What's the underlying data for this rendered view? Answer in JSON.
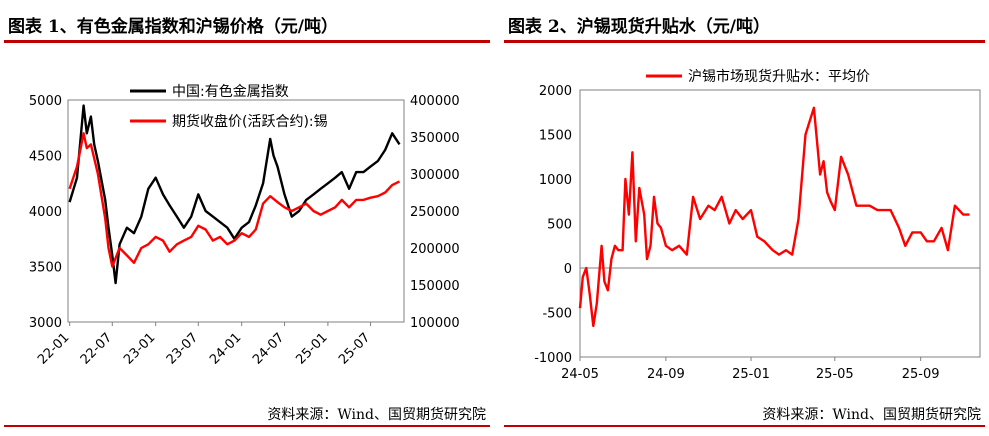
{
  "charts": {
    "left": {
      "title": "图表 1、有色金属指数和沪锡价格（元/吨）",
      "source": "资料来源：Wind、国贸期货研究院"
    },
    "right": {
      "title": "图表 2、沪锡现货升贴水（元/吨）",
      "source": "资料来源：Wind、国贸期货研究院"
    }
  },
  "colors": {
    "accent": "#c00000",
    "series_black": "#000000",
    "series_red": "#ff0000",
    "axis": "#808080"
  },
  "chart_data": [
    {
      "type": "line",
      "title": "图表 1、有色金属指数和沪锡价格（元/吨）",
      "x_ticks": [
        "22-01",
        "22-07",
        "23-01",
        "23-07",
        "24-01",
        "24-07",
        "25-01",
        "25-07"
      ],
      "y_left": {
        "range": [
          3000,
          5000
        ],
        "ticks": [
          "3000",
          "3500",
          "4000",
          "4500",
          "5000"
        ]
      },
      "y_right": {
        "range": [
          100000,
          400000
        ],
        "ticks": [
          "100000",
          "150000",
          "200000",
          "250000",
          "300000",
          "350000",
          "400000"
        ]
      },
      "legend_position": "top-center",
      "series": [
        {
          "name": "中国:有色金属指数",
          "axis": "left",
          "color": "#000000",
          "x": [
            "2022-01",
            "2022-02",
            "2022-03",
            "2022-03-15",
            "2022-04",
            "2022-04-15",
            "2022-05",
            "2022-06",
            "2022-06-15",
            "2022-07",
            "2022-07-15",
            "2022-08",
            "2022-09",
            "2022-10",
            "2022-11",
            "2022-12",
            "2023-01",
            "2023-02",
            "2023-03",
            "2023-04",
            "2023-05",
            "2023-06",
            "2023-07",
            "2023-08",
            "2023-09",
            "2023-10",
            "2023-11",
            "2023-12",
            "2024-01",
            "2024-02",
            "2024-03",
            "2024-04",
            "2024-05",
            "2024-05-15",
            "2024-06",
            "2024-07",
            "2024-08",
            "2024-09",
            "2024-10",
            "2024-11",
            "2024-12",
            "2025-01",
            "2025-02",
            "2025-03",
            "2025-04",
            "2025-05",
            "2025-06",
            "2025-07",
            "2025-08",
            "2025-09",
            "2025-10",
            "2025-11"
          ],
          "y": [
            4080,
            4300,
            4950,
            4700,
            4850,
            4600,
            4450,
            4100,
            3850,
            3600,
            3350,
            3700,
            3850,
            3800,
            3950,
            4200,
            4300,
            4150,
            4050,
            3950,
            3850,
            3950,
            4150,
            4000,
            3950,
            3900,
            3850,
            3750,
            3850,
            3900,
            4050,
            4250,
            4650,
            4500,
            4400,
            4150,
            3950,
            4000,
            4100,
            4150,
            4200,
            4250,
            4300,
            4350,
            4200,
            4350,
            4350,
            4400,
            4450,
            4550,
            4700,
            4600
          ]
        },
        {
          "name": "期货收盘价(活跃合约):锡",
          "axis": "right",
          "color": "#ff0000",
          "x": [
            "2022-01",
            "2022-02",
            "2022-03",
            "2022-03-15",
            "2022-04",
            "2022-05",
            "2022-06",
            "2022-06-15",
            "2022-07",
            "2022-08",
            "2022-09",
            "2022-10",
            "2022-11",
            "2022-12",
            "2023-01",
            "2023-02",
            "2023-03",
            "2023-04",
            "2023-05",
            "2023-06",
            "2023-07",
            "2023-08",
            "2023-09",
            "2023-10",
            "2023-11",
            "2023-12",
            "2024-01",
            "2024-02",
            "2024-03",
            "2024-04",
            "2024-05",
            "2024-06",
            "2024-07",
            "2024-08",
            "2024-09",
            "2024-10",
            "2024-11",
            "2024-12",
            "2025-01",
            "2025-02",
            "2025-03",
            "2025-04",
            "2025-05",
            "2025-06",
            "2025-07",
            "2025-08",
            "2025-09",
            "2025-10",
            "2025-11"
          ],
          "y": [
            280000,
            310000,
            355000,
            335000,
            340000,
            300000,
            240000,
            200000,
            175000,
            200000,
            190000,
            180000,
            200000,
            205000,
            215000,
            210000,
            195000,
            205000,
            210000,
            215000,
            230000,
            225000,
            210000,
            215000,
            205000,
            210000,
            220000,
            215000,
            225000,
            260000,
            270000,
            262000,
            255000,
            250000,
            255000,
            260000,
            250000,
            245000,
            250000,
            255000,
            265000,
            255000,
            265000,
            265000,
            268000,
            270000,
            275000,
            285000,
            290000
          ]
        }
      ]
    },
    {
      "type": "line",
      "title": "图表 2、沪锡现货升贴水（元/吨）",
      "x_ticks": [
        "24-05",
        "24-09",
        "25-01",
        "25-05",
        "25-09"
      ],
      "y": {
        "range": [
          -1000,
          2000
        ],
        "ticks": [
          "-1000",
          "-500",
          "0",
          "500",
          "1000",
          "1500",
          "2000"
        ]
      },
      "legend_position": "top-center",
      "series": [
        {
          "name": "沪锡市场现货升贴水：平均价",
          "color": "#ff0000",
          "x": [
            "2024-05-01",
            "2024-05-05",
            "2024-05-10",
            "2024-05-15",
            "2024-05-20",
            "2024-05-25",
            "2024-06-01",
            "2024-06-05",
            "2024-06-10",
            "2024-06-15",
            "2024-06-20",
            "2024-06-25",
            "2024-07-01",
            "2024-07-05",
            "2024-07-10",
            "2024-07-15",
            "2024-07-20",
            "2024-07-25",
            "2024-08-01",
            "2024-08-05",
            "2024-08-10",
            "2024-08-15",
            "2024-08-20",
            "2024-08-25",
            "2024-09-01",
            "2024-09-10",
            "2024-09-20",
            "2024-10-01",
            "2024-10-10",
            "2024-10-20",
            "2024-11-01",
            "2024-11-10",
            "2024-11-20",
            "2024-12-01",
            "2024-12-10",
            "2024-12-20",
            "2025-01-01",
            "2025-01-10",
            "2025-01-20",
            "2025-02-01",
            "2025-02-10",
            "2025-02-20",
            "2025-03-01",
            "2025-03-10",
            "2025-03-20",
            "2025-04-01",
            "2025-04-10",
            "2025-04-15",
            "2025-04-20",
            "2025-04-25",
            "2025-05-01",
            "2025-05-10",
            "2025-05-20",
            "2025-06-01",
            "2025-06-10",
            "2025-06-20",
            "2025-07-01",
            "2025-07-10",
            "2025-07-20",
            "2025-08-01",
            "2025-08-10",
            "2025-08-20",
            "2025-09-01",
            "2025-09-10",
            "2025-09-20",
            "2025-10-01",
            "2025-10-10",
            "2025-10-20",
            "2025-11-01",
            "2025-11-10"
          ],
          "y": [
            -450,
            -100,
            0,
            -300,
            -650,
            -400,
            250,
            -150,
            -250,
            100,
            250,
            200,
            200,
            1000,
            600,
            1300,
            300,
            900,
            600,
            100,
            250,
            800,
            500,
            450,
            250,
            200,
            250,
            150,
            800,
            550,
            700,
            650,
            800,
            500,
            650,
            550,
            650,
            350,
            300,
            200,
            150,
            200,
            150,
            550,
            1500,
            1800,
            1050,
            1200,
            850,
            750,
            650,
            1250,
            1050,
            700,
            700,
            700,
            650,
            650,
            650,
            450,
            250,
            400,
            400,
            300,
            300,
            450,
            200,
            700,
            600,
            600
          ]
        }
      ]
    }
  ]
}
